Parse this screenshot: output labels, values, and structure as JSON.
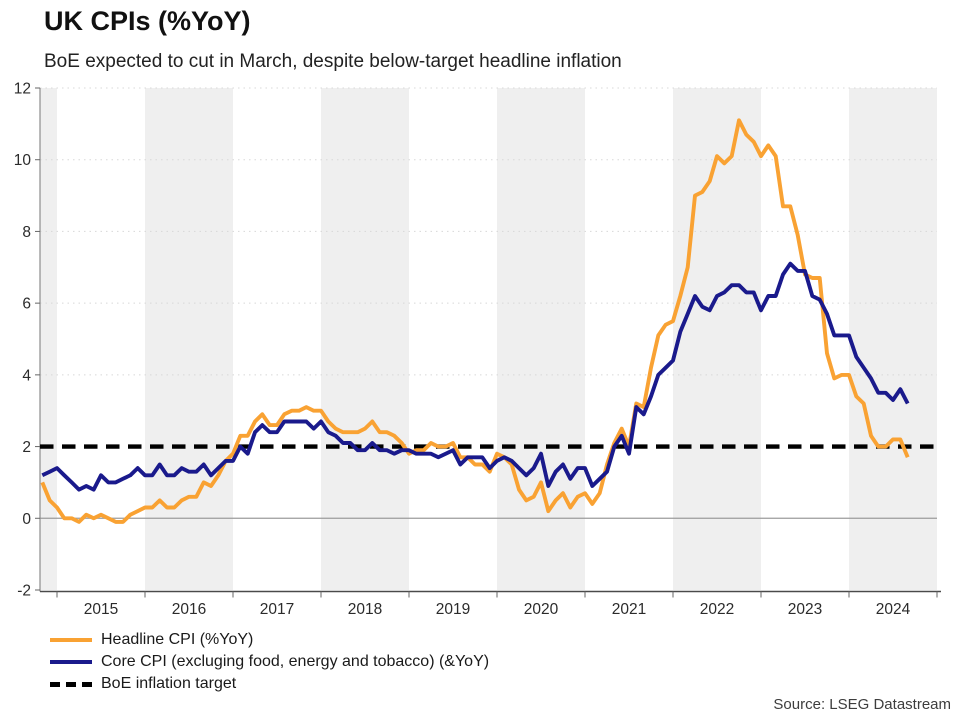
{
  "header": {
    "title": "UK CPIs (%YoY)",
    "subtitle": "BoE expected to cut in March, despite below-target headline inflation"
  },
  "source": "Source: LSEG Datastream",
  "legend": [
    {
      "id": "headline-cpi",
      "label": "Headline CPI (%YoY)",
      "color": "#F9A233",
      "style": "solid"
    },
    {
      "id": "core-cpi",
      "label": "Core CPI (excluging food, energy and tobacco) (&YoY)",
      "color": "#1A1A8C",
      "style": "solid"
    },
    {
      "id": "boe-target",
      "label": "BoE inflation target",
      "color": "#000000",
      "style": "dashed"
    }
  ],
  "colors": {
    "headline": "#F9A233",
    "core": "#1A1A8C",
    "target": "#000000",
    "year_band": "#EFEFEF",
    "grid": "#D8D8D8",
    "zero_line": "#9C9C9C",
    "axis": "#4A4A4A",
    "tick_text": "#2B2B2B"
  },
  "chart_data": {
    "type": "line",
    "title": "UK CPIs (%YoY)",
    "subtitle": "BoE expected to cut in March, despite below-target headline inflation",
    "x_start_month": "2014-11",
    "x_end_month": "2024-09",
    "x_tick_labels": [
      "2015",
      "2016",
      "2017",
      "2018",
      "2019",
      "2020",
      "2021",
      "2022",
      "2023",
      "2024"
    ],
    "ylim": [
      -2,
      12
    ],
    "y_ticks": [
      -2,
      0,
      2,
      4,
      6,
      8,
      10,
      12
    ],
    "grid": "horizontal-dotted",
    "background_bands": "alternate-even-years-grey",
    "legend_position": "bottom-left",
    "target_line": {
      "name": "BoE inflation target",
      "value": 2,
      "color": "#000000",
      "style": "dashed"
    },
    "series": [
      {
        "name": "Headline CPI (%YoY)",
        "id": "headline-cpi-line",
        "color": "#F9A233",
        "values": [
          1.0,
          0.5,
          0.3,
          0.0,
          0.0,
          -0.1,
          0.1,
          0.0,
          0.1,
          0.0,
          -0.1,
          -0.1,
          0.1,
          0.2,
          0.3,
          0.3,
          0.5,
          0.3,
          0.3,
          0.5,
          0.6,
          0.6,
          1.0,
          0.9,
          1.2,
          1.6,
          1.8,
          2.3,
          2.3,
          2.7,
          2.9,
          2.6,
          2.6,
          2.9,
          3.0,
          3.0,
          3.1,
          3.0,
          3.0,
          2.7,
          2.5,
          2.4,
          2.4,
          2.4,
          2.5,
          2.7,
          2.4,
          2.4,
          2.3,
          2.1,
          1.8,
          1.9,
          1.9,
          2.1,
          2.0,
          2.0,
          2.1,
          1.7,
          1.7,
          1.5,
          1.5,
          1.3,
          1.8,
          1.7,
          1.5,
          0.8,
          0.5,
          0.6,
          1.0,
          0.2,
          0.5,
          0.7,
          0.3,
          0.6,
          0.7,
          0.4,
          0.7,
          1.5,
          2.1,
          2.5,
          2.0,
          3.2,
          3.1,
          4.2,
          5.1,
          5.4,
          5.5,
          6.2,
          7.0,
          9.0,
          9.1,
          9.4,
          10.1,
          9.9,
          10.1,
          11.1,
          10.7,
          10.5,
          10.1,
          10.4,
          10.1,
          8.7,
          8.7,
          7.9,
          6.8,
          6.7,
          6.7,
          4.6,
          3.9,
          4.0,
          4.0,
          3.4,
          3.2,
          2.3,
          2.0,
          2.0,
          2.2,
          2.2,
          1.7
        ]
      },
      {
        "name": "Core CPI (excluging food, energy and tobacco) (&YoY)",
        "id": "core-cpi-line",
        "color": "#1A1A8C",
        "values": [
          1.2,
          1.3,
          1.4,
          1.2,
          1.0,
          0.8,
          0.9,
          0.8,
          1.2,
          1.0,
          1.0,
          1.1,
          1.2,
          1.4,
          1.2,
          1.2,
          1.5,
          1.2,
          1.2,
          1.4,
          1.3,
          1.3,
          1.5,
          1.2,
          1.4,
          1.6,
          1.6,
          2.0,
          1.8,
          2.4,
          2.6,
          2.4,
          2.4,
          2.7,
          2.7,
          2.7,
          2.7,
          2.5,
          2.7,
          2.4,
          2.3,
          2.1,
          2.1,
          1.9,
          1.9,
          2.1,
          1.9,
          1.9,
          1.8,
          1.9,
          1.9,
          1.8,
          1.8,
          1.8,
          1.7,
          1.8,
          1.9,
          1.5,
          1.7,
          1.7,
          1.7,
          1.4,
          1.6,
          1.7,
          1.6,
          1.4,
          1.2,
          1.4,
          1.8,
          0.9,
          1.3,
          1.5,
          1.1,
          1.4,
          1.4,
          0.9,
          1.1,
          1.3,
          2.0,
          2.3,
          1.8,
          3.1,
          2.9,
          3.4,
          4.0,
          4.2,
          4.4,
          5.2,
          5.7,
          6.2,
          5.9,
          5.8,
          6.2,
          6.3,
          6.5,
          6.5,
          6.3,
          6.3,
          5.8,
          6.2,
          6.2,
          6.8,
          7.1,
          6.9,
          6.9,
          6.2,
          6.1,
          5.7,
          5.1,
          5.1,
          5.1,
          4.5,
          4.2,
          3.9,
          3.5,
          3.5,
          3.3,
          3.6,
          3.2
        ]
      }
    ]
  }
}
